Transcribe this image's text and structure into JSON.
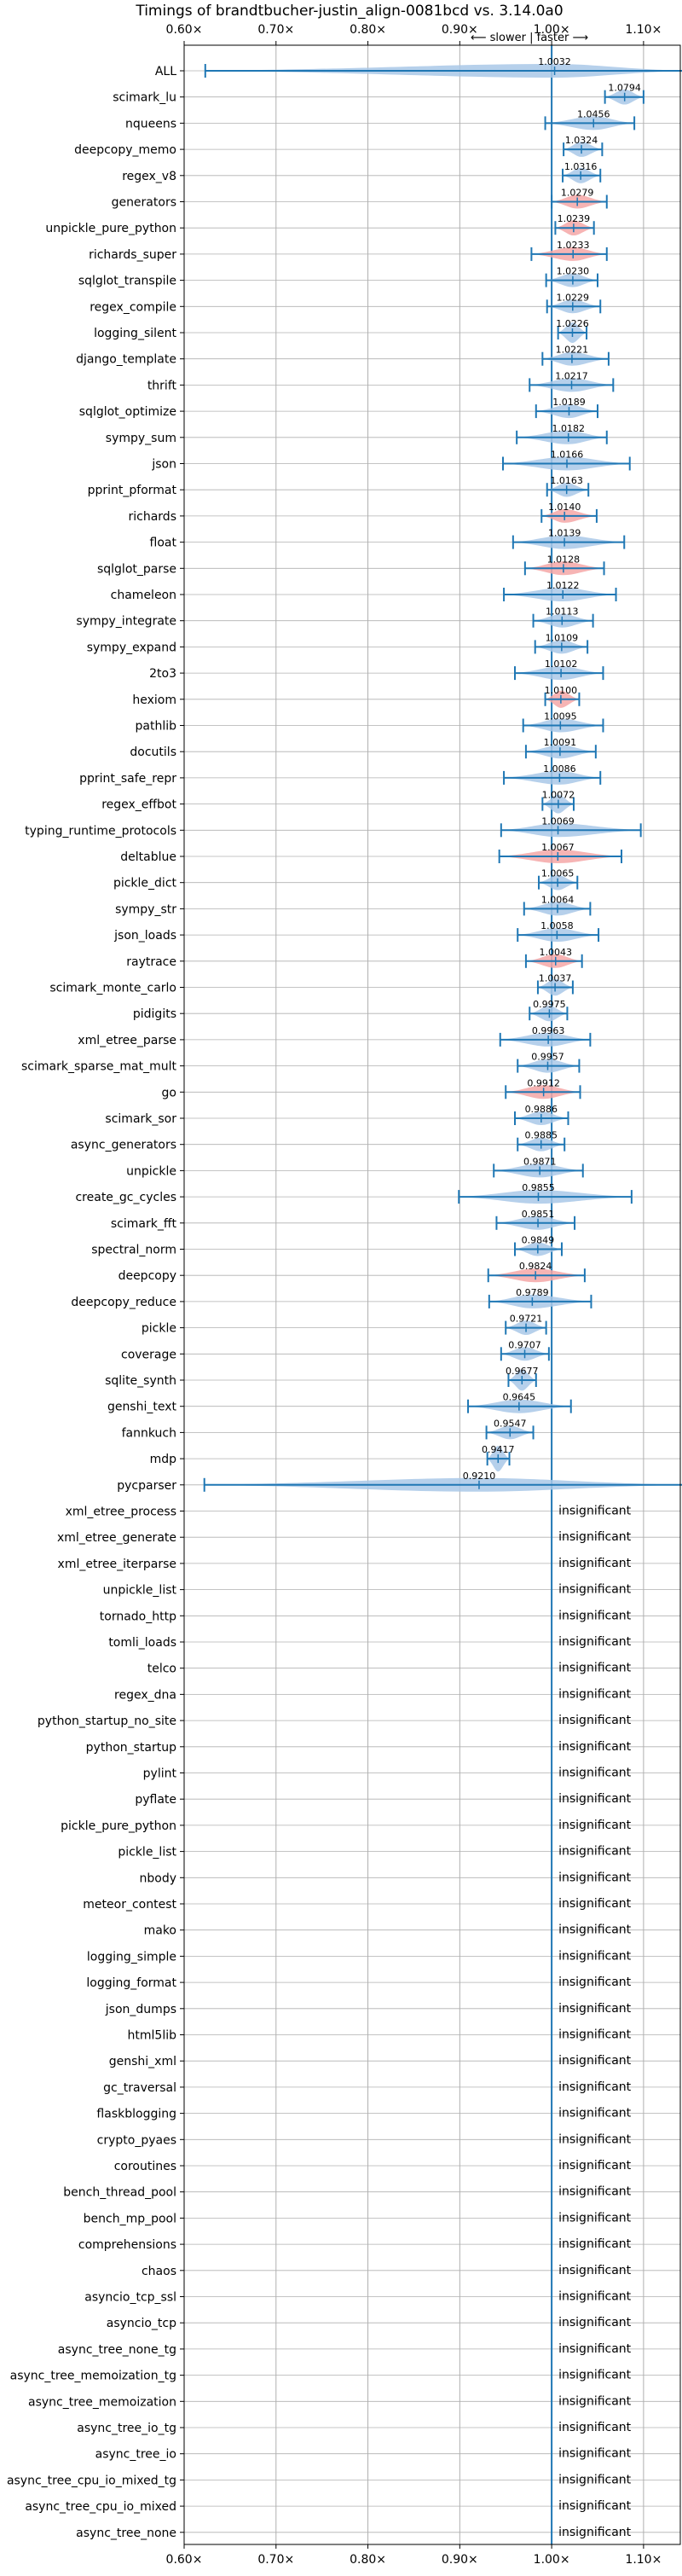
{
  "chart_data": {
    "type": "violin",
    "title": "Timings of brandtbucher-justin_align-0081bcd vs. 3.14.0a0",
    "subtitle": "⟵ slower | faster ⟶",
    "xlim": [
      0.6,
      1.14
    ],
    "xticks": [
      0.6,
      0.7,
      0.8,
      0.9,
      1.0,
      1.1
    ],
    "xtick_labels": [
      "0.60×",
      "0.70×",
      "0.80×",
      "0.90×",
      "1.00×",
      "1.10×"
    ],
    "grid": true,
    "reference_line": 1.0,
    "colors": {
      "faster": "#a9c8e8",
      "slower": "#f4a7a7",
      "errorbar": "#1f77b4",
      "grid": "#b0b0b0"
    },
    "insignificant_label": "insignificant",
    "benchmarks": [
      {
        "name": "ALL",
        "value": 1.0032,
        "label": "1.0032",
        "lo": 0.623,
        "hi": 1.145,
        "color": "blue"
      },
      {
        "name": "scimark_lu",
        "value": 1.0794,
        "label": "1.0794",
        "lo": 1.058,
        "hi": 1.1,
        "color": "blue"
      },
      {
        "name": "nqueens",
        "value": 1.0456,
        "label": "1.0456",
        "lo": 0.993,
        "hi": 1.09,
        "color": "blue"
      },
      {
        "name": "deepcopy_memo",
        "value": 1.0324,
        "label": "1.0324",
        "lo": 1.013,
        "hi": 1.055,
        "color": "blue"
      },
      {
        "name": "regex_v8",
        "value": 1.0316,
        "label": "1.0316",
        "lo": 1.012,
        "hi": 1.053,
        "color": "blue"
      },
      {
        "name": "generators",
        "value": 1.0279,
        "label": "1.0279",
        "lo": 1.0,
        "hi": 1.06,
        "color": "red"
      },
      {
        "name": "unpickle_pure_python",
        "value": 1.0239,
        "label": "1.0239",
        "lo": 1.004,
        "hi": 1.046,
        "color": "red"
      },
      {
        "name": "richards_super",
        "value": 1.0233,
        "label": "1.0233",
        "lo": 0.978,
        "hi": 1.06,
        "color": "red"
      },
      {
        "name": "sqlglot_transpile",
        "value": 1.023,
        "label": "1.0230",
        "lo": 0.994,
        "hi": 1.05,
        "color": "blue"
      },
      {
        "name": "regex_compile",
        "value": 1.0229,
        "label": "1.0229",
        "lo": 0.995,
        "hi": 1.053,
        "color": "blue"
      },
      {
        "name": "logging_silent",
        "value": 1.0226,
        "label": "1.0226",
        "lo": 1.007,
        "hi": 1.038,
        "color": "blue"
      },
      {
        "name": "django_template",
        "value": 1.0221,
        "label": "1.0221",
        "lo": 0.99,
        "hi": 1.062,
        "color": "blue"
      },
      {
        "name": "thrift",
        "value": 1.0217,
        "label": "1.0217",
        "lo": 0.976,
        "hi": 1.067,
        "color": "blue"
      },
      {
        "name": "sqlglot_optimize",
        "value": 1.0189,
        "label": "1.0189",
        "lo": 0.983,
        "hi": 1.05,
        "color": "blue"
      },
      {
        "name": "sympy_sum",
        "value": 1.0182,
        "label": "1.0182",
        "lo": 0.962,
        "hi": 1.06,
        "color": "blue"
      },
      {
        "name": "json",
        "value": 1.0166,
        "label": "1.0166",
        "lo": 0.947,
        "hi": 1.085,
        "color": "blue"
      },
      {
        "name": "pprint_pformat",
        "value": 1.0163,
        "label": "1.0163",
        "lo": 0.995,
        "hi": 1.04,
        "color": "blue"
      },
      {
        "name": "richards",
        "value": 1.014,
        "label": "1.0140",
        "lo": 0.989,
        "hi": 1.049,
        "color": "red"
      },
      {
        "name": "float",
        "value": 1.0139,
        "label": "1.0139",
        "lo": 0.958,
        "hi": 1.079,
        "color": "blue"
      },
      {
        "name": "sqlglot_parse",
        "value": 1.0128,
        "label": "1.0128",
        "lo": 0.971,
        "hi": 1.057,
        "color": "red"
      },
      {
        "name": "chameleon",
        "value": 1.0122,
        "label": "1.0122",
        "lo": 0.948,
        "hi": 1.07,
        "color": "blue"
      },
      {
        "name": "sympy_integrate",
        "value": 1.0113,
        "label": "1.0113",
        "lo": 0.98,
        "hi": 1.045,
        "color": "blue"
      },
      {
        "name": "sympy_expand",
        "value": 1.0109,
        "label": "1.0109",
        "lo": 0.982,
        "hi": 1.039,
        "color": "blue"
      },
      {
        "name": "2to3",
        "value": 1.0102,
        "label": "1.0102",
        "lo": 0.96,
        "hi": 1.056,
        "color": "blue"
      },
      {
        "name": "hexiom",
        "value": 1.01,
        "label": "1.0100",
        "lo": 0.993,
        "hi": 1.03,
        "color": "red"
      },
      {
        "name": "pathlib",
        "value": 1.0095,
        "label": "1.0095",
        "lo": 0.969,
        "hi": 1.056,
        "color": "blue"
      },
      {
        "name": "docutils",
        "value": 1.0091,
        "label": "1.0091",
        "lo": 0.972,
        "hi": 1.048,
        "color": "blue"
      },
      {
        "name": "pprint_safe_repr",
        "value": 1.0086,
        "label": "1.0086",
        "lo": 0.948,
        "hi": 1.053,
        "color": "blue"
      },
      {
        "name": "regex_effbot",
        "value": 1.0072,
        "label": "1.0072",
        "lo": 0.99,
        "hi": 1.024,
        "color": "blue"
      },
      {
        "name": "typing_runtime_protocols",
        "value": 1.0069,
        "label": "1.0069",
        "lo": 0.945,
        "hi": 1.097,
        "color": "blue"
      },
      {
        "name": "deltablue",
        "value": 1.0067,
        "label": "1.0067",
        "lo": 0.943,
        "hi": 1.076,
        "color": "red"
      },
      {
        "name": "pickle_dict",
        "value": 1.0065,
        "label": "1.0065",
        "lo": 0.986,
        "hi": 1.028,
        "color": "blue"
      },
      {
        "name": "sympy_str",
        "value": 1.0064,
        "label": "1.0064",
        "lo": 0.97,
        "hi": 1.042,
        "color": "blue"
      },
      {
        "name": "json_loads",
        "value": 1.0058,
        "label": "1.0058",
        "lo": 0.963,
        "hi": 1.051,
        "color": "blue"
      },
      {
        "name": "raytrace",
        "value": 1.0043,
        "label": "1.0043",
        "lo": 0.972,
        "hi": 1.033,
        "color": "red"
      },
      {
        "name": "scimark_monte_carlo",
        "value": 1.0037,
        "label": "1.0037",
        "lo": 0.985,
        "hi": 1.023,
        "color": "blue"
      },
      {
        "name": "pidigits",
        "value": 0.9975,
        "label": "0.9975",
        "lo": 0.976,
        "hi": 1.017,
        "color": "blue"
      },
      {
        "name": "xml_etree_parse",
        "value": 0.9963,
        "label": "0.9963",
        "lo": 0.944,
        "hi": 1.042,
        "color": "blue"
      },
      {
        "name": "scimark_sparse_mat_mult",
        "value": 0.9957,
        "label": "0.9957",
        "lo": 0.963,
        "hi": 1.03,
        "color": "blue"
      },
      {
        "name": "go",
        "value": 0.9912,
        "label": "0.9912",
        "lo": 0.95,
        "hi": 1.031,
        "color": "red"
      },
      {
        "name": "scimark_sor",
        "value": 0.9886,
        "label": "0.9886",
        "lo": 0.96,
        "hi": 1.018,
        "color": "blue"
      },
      {
        "name": "async_generators",
        "value": 0.9885,
        "label": "0.9885",
        "lo": 0.963,
        "hi": 1.014,
        "color": "blue"
      },
      {
        "name": "unpickle",
        "value": 0.9871,
        "label": "0.9871",
        "lo": 0.937,
        "hi": 1.034,
        "color": "blue"
      },
      {
        "name": "create_gc_cycles",
        "value": 0.9855,
        "label": "0.9855",
        "lo": 0.899,
        "hi": 1.087,
        "color": "blue"
      },
      {
        "name": "scimark_fft",
        "value": 0.9851,
        "label": "0.9851",
        "lo": 0.94,
        "hi": 1.025,
        "color": "blue"
      },
      {
        "name": "spectral_norm",
        "value": 0.9849,
        "label": "0.9849",
        "lo": 0.96,
        "hi": 1.011,
        "color": "blue"
      },
      {
        "name": "deepcopy",
        "value": 0.9824,
        "label": "0.9824",
        "lo": 0.931,
        "hi": 1.036,
        "color": "red"
      },
      {
        "name": "deepcopy_reduce",
        "value": 0.9789,
        "label": "0.9789",
        "lo": 0.932,
        "hi": 1.043,
        "color": "blue"
      },
      {
        "name": "pickle",
        "value": 0.9721,
        "label": "0.9721",
        "lo": 0.95,
        "hi": 0.994,
        "color": "blue"
      },
      {
        "name": "coverage",
        "value": 0.9707,
        "label": "0.9707",
        "lo": 0.945,
        "hi": 0.997,
        "color": "blue"
      },
      {
        "name": "sqlite_synth",
        "value": 0.9677,
        "label": "0.9677",
        "lo": 0.953,
        "hi": 0.983,
        "color": "blue"
      },
      {
        "name": "genshi_text",
        "value": 0.9645,
        "label": "0.9645",
        "lo": 0.909,
        "hi": 1.021,
        "color": "blue"
      },
      {
        "name": "fannkuch",
        "value": 0.9547,
        "label": "0.9547",
        "lo": 0.929,
        "hi": 0.98,
        "color": "blue"
      },
      {
        "name": "mdp",
        "value": 0.9417,
        "label": "0.9417",
        "lo": 0.93,
        "hi": 0.954,
        "color": "blue"
      },
      {
        "name": "pycparser",
        "value": 0.921,
        "label": "0.9210",
        "lo": 0.622,
        "hi": 1.145,
        "color": "blue"
      }
    ],
    "insignificant": [
      "xml_etree_process",
      "xml_etree_generate",
      "xml_etree_iterparse",
      "unpickle_list",
      "tornado_http",
      "tomli_loads",
      "telco",
      "regex_dna",
      "python_startup_no_site",
      "python_startup",
      "pylint",
      "pyflate",
      "pickle_pure_python",
      "pickle_list",
      "nbody",
      "meteor_contest",
      "mako",
      "logging_simple",
      "logging_format",
      "json_dumps",
      "html5lib",
      "genshi_xml",
      "gc_traversal",
      "flaskblogging",
      "crypto_pyaes",
      "coroutines",
      "bench_thread_pool",
      "bench_mp_pool",
      "comprehensions",
      "chaos",
      "asyncio_tcp_ssl",
      "asyncio_tcp",
      "async_tree_none_tg",
      "async_tree_memoization_tg",
      "async_tree_memoization",
      "async_tree_io_tg",
      "async_tree_io",
      "async_tree_cpu_io_mixed_tg",
      "async_tree_cpu_io_mixed",
      "async_tree_none"
    ]
  }
}
